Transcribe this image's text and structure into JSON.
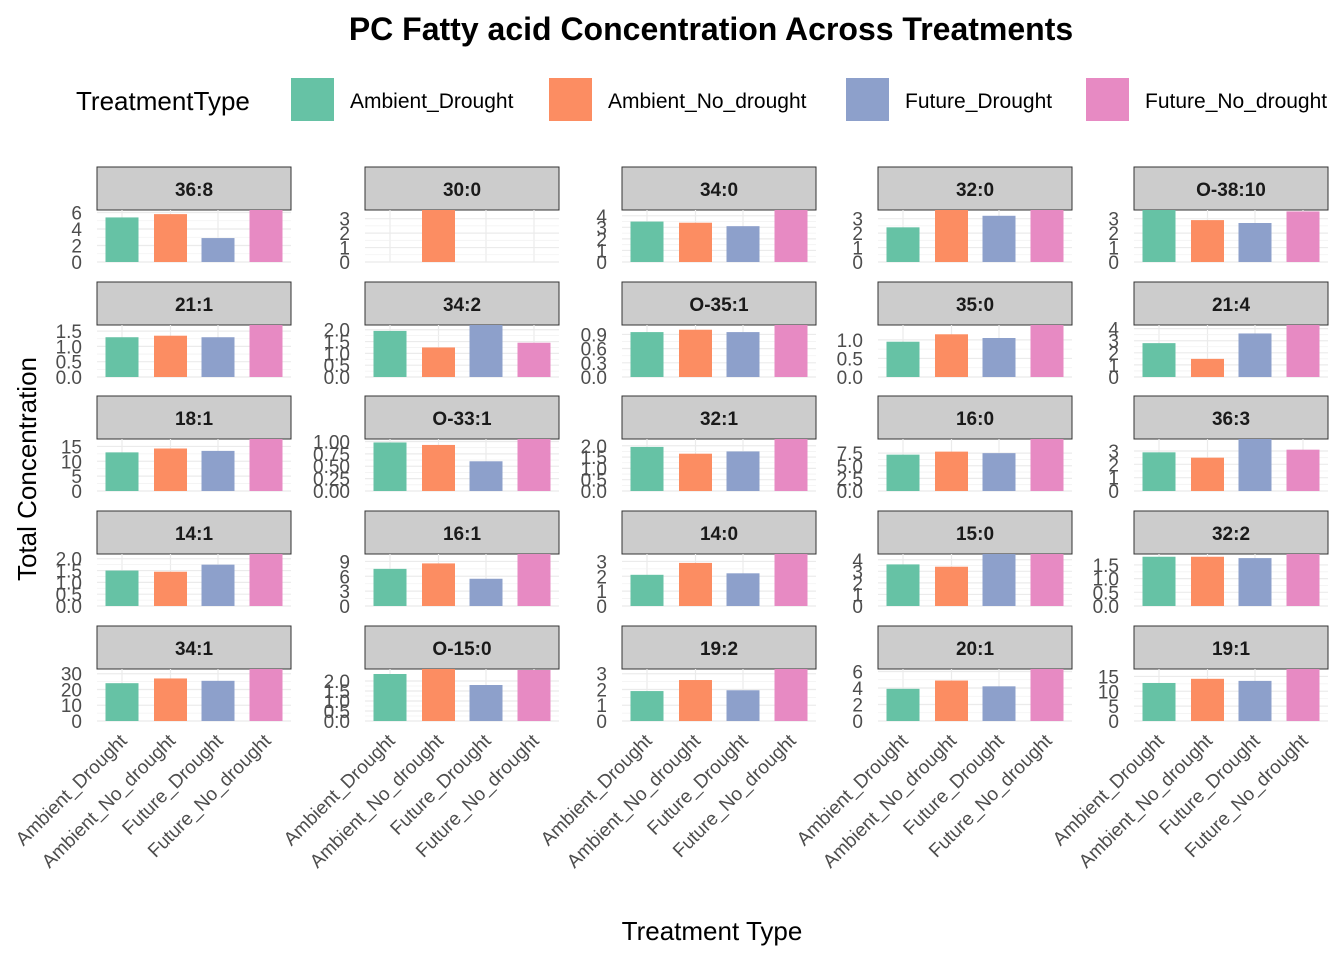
{
  "chart_data": {
    "type": "bar",
    "title": "PC  Fatty acid Concentration Across Treatments",
    "xlabel": "Treatment Type",
    "ylabel": "Total Concentration",
    "legend": {
      "title": "TreatmentType",
      "placement": "top",
      "entries": [
        "Ambient_Drought",
        "Ambient_No_drought",
        "Future_Drought",
        "Future_No_drought"
      ]
    },
    "categories": [
      "Ambient_Drought",
      "Ambient_No_drought",
      "Future_Drought",
      "Future_No_drought"
    ],
    "colors": [
      "#66C2A5",
      "#FC8D62",
      "#8DA0CB",
      "#E78AC3"
    ],
    "grid": true,
    "facet_ncol": 5,
    "panels": [
      {
        "label": "36:8",
        "ylim": [
          0,
          6.3
        ],
        "ticks": [
          0,
          2,
          4,
          6
        ],
        "tick_labels": [
          "0",
          "2",
          "4",
          "6"
        ],
        "values": [
          5.4,
          5.8,
          2.9,
          6.3
        ]
      },
      {
        "label": "30:0",
        "ylim": [
          0,
          3.6
        ],
        "ticks": [
          0,
          1,
          2,
          3
        ],
        "tick_labels": [
          "0",
          "1",
          "2",
          "3"
        ],
        "values": [
          0,
          3.6,
          0,
          0
        ]
      },
      {
        "label": "34:0",
        "ylim": [
          0,
          4.5
        ],
        "ticks": [
          0,
          1,
          2,
          3,
          4
        ],
        "tick_labels": [
          "0",
          "1",
          "2",
          "3",
          "4"
        ],
        "values": [
          3.5,
          3.4,
          3.1,
          4.5
        ]
      },
      {
        "label": "32:0",
        "ylim": [
          0,
          3.6
        ],
        "ticks": [
          0,
          1,
          2,
          3
        ],
        "tick_labels": [
          "0",
          "1",
          "2",
          "3"
        ],
        "values": [
          2.4,
          3.6,
          3.2,
          3.6
        ]
      },
      {
        "label": "O-38:10",
        "ylim": [
          0,
          3.6
        ],
        "ticks": [
          0,
          1,
          2,
          3
        ],
        "tick_labels": [
          "0",
          "1",
          "2",
          "3"
        ],
        "values": [
          3.6,
          2.9,
          2.7,
          3.5
        ]
      },
      {
        "label": "21:1",
        "ylim": [
          0,
          1.7
        ],
        "ticks": [
          0,
          0.5,
          1.0,
          1.5
        ],
        "tick_labels": [
          "0.0",
          "0.5",
          "1.0",
          "1.5"
        ],
        "values": [
          1.3,
          1.35,
          1.3,
          1.7
        ]
      },
      {
        "label": "34:2",
        "ylim": [
          0,
          2.2
        ],
        "ticks": [
          0,
          0.5,
          1.0,
          1.5,
          2.0
        ],
        "tick_labels": [
          "0.0",
          "0.5",
          "1.0",
          "1.5",
          "2.0"
        ],
        "values": [
          1.95,
          1.25,
          2.2,
          1.45
        ]
      },
      {
        "label": "O-35:1",
        "ylim": [
          0,
          1.1
        ],
        "ticks": [
          0,
          0.3,
          0.6,
          0.9
        ],
        "tick_labels": [
          "0.0",
          "0.3",
          "0.6",
          "0.9"
        ],
        "values": [
          0.95,
          1.0,
          0.95,
          1.1
        ]
      },
      {
        "label": "35:0",
        "ylim": [
          0,
          1.4
        ],
        "ticks": [
          0,
          0.5,
          1.0
        ],
        "tick_labels": [
          "0.0",
          "0.5",
          "1.0"
        ],
        "values": [
          0.95,
          1.15,
          1.05,
          1.4
        ]
      },
      {
        "label": "21:4",
        "ylim": [
          0,
          4.3
        ],
        "ticks": [
          0,
          1,
          2,
          3,
          4
        ],
        "tick_labels": [
          "0",
          "1",
          "2",
          "3",
          "4"
        ],
        "values": [
          2.8,
          1.5,
          3.6,
          4.3
        ]
      },
      {
        "label": "18:1",
        "ylim": [
          0,
          17.5
        ],
        "ticks": [
          0,
          5,
          10,
          15
        ],
        "tick_labels": [
          "0",
          "5",
          "10",
          "15"
        ],
        "values": [
          13.0,
          14.3,
          13.5,
          17.5
        ]
      },
      {
        "label": "O-33:1",
        "ylim": [
          0,
          1.05
        ],
        "ticks": [
          0,
          0.25,
          0.5,
          0.75,
          1.0
        ],
        "tick_labels": [
          "0.00",
          "0.25",
          "0.50",
          "0.75",
          "1.00"
        ],
        "values": [
          0.98,
          0.93,
          0.6,
          1.05
        ]
      },
      {
        "label": "32:1",
        "ylim": [
          0,
          2.3
        ],
        "ticks": [
          0,
          0.5,
          1.0,
          1.5,
          2.0
        ],
        "tick_labels": [
          "0.0",
          "0.5",
          "1.0",
          "1.5",
          "2.0"
        ],
        "values": [
          1.95,
          1.65,
          1.75,
          2.3
        ]
      },
      {
        "label": "16:0",
        "ylim": [
          0,
          10.3
        ],
        "ticks": [
          0,
          2.5,
          5.0,
          7.5
        ],
        "tick_labels": [
          "0.0",
          "2.5",
          "5.0",
          "7.5"
        ],
        "values": [
          7.2,
          7.8,
          7.5,
          10.3
        ]
      },
      {
        "label": "36:3",
        "ylim": [
          0,
          3.9
        ],
        "ticks": [
          0,
          1,
          2,
          3
        ],
        "tick_labels": [
          "0",
          "1",
          "2",
          "3"
        ],
        "values": [
          2.9,
          2.5,
          3.9,
          3.1
        ]
      },
      {
        "label": "14:1",
        "ylim": [
          0,
          2.2
        ],
        "ticks": [
          0,
          0.5,
          1.0,
          1.5,
          2.0
        ],
        "tick_labels": [
          "0.0",
          "0.5",
          "1.0",
          "1.5",
          "2.0"
        ],
        "values": [
          1.5,
          1.45,
          1.75,
          2.2
        ]
      },
      {
        "label": "16:1",
        "ylim": [
          0,
          10.5
        ],
        "ticks": [
          0,
          3,
          6,
          9
        ],
        "tick_labels": [
          "0",
          "3",
          "6",
          "9"
        ],
        "values": [
          7.5,
          8.6,
          5.5,
          10.5
        ]
      },
      {
        "label": "14:0",
        "ylim": [
          0,
          3.5
        ],
        "ticks": [
          0,
          1,
          2,
          3
        ],
        "tick_labels": [
          "0",
          "1",
          "2",
          "3"
        ],
        "values": [
          2.1,
          2.9,
          2.2,
          3.5
        ]
      },
      {
        "label": "15:0",
        "ylim": [
          0,
          4.5
        ],
        "ticks": [
          0,
          1,
          2,
          3,
          4
        ],
        "tick_labels": [
          "0",
          "1",
          "2",
          "3",
          "4"
        ],
        "values": [
          3.6,
          3.4,
          4.5,
          4.5
        ]
      },
      {
        "label": "32:2",
        "ylim": [
          0,
          1.9
        ],
        "ticks": [
          0,
          0.5,
          1.0,
          1.5
        ],
        "tick_labels": [
          "0.0",
          "0.5",
          "1.0",
          "1.5"
        ],
        "values": [
          1.8,
          1.8,
          1.75,
          1.9
        ]
      },
      {
        "label": "34:1",
        "ylim": [
          0,
          33
        ],
        "ticks": [
          0,
          10,
          20,
          30
        ],
        "tick_labels": [
          "0",
          "10",
          "20",
          "30"
        ],
        "values": [
          24,
          27,
          25.5,
          33
        ]
      },
      {
        "label": "O-15:0",
        "ylim": [
          0,
          2.6
        ],
        "ticks": [
          0,
          0.5,
          1.0,
          1.5,
          2.0
        ],
        "tick_labels": [
          "0.0",
          "0.5",
          "1.0",
          "1.5",
          "2.0"
        ],
        "values": [
          2.35,
          2.6,
          1.8,
          2.55
        ]
      },
      {
        "label": "19:2",
        "ylim": [
          0,
          3.3
        ],
        "ticks": [
          0,
          1,
          2,
          3
        ],
        "tick_labels": [
          "0",
          "1",
          "2",
          "3"
        ],
        "values": [
          1.9,
          2.6,
          1.95,
          3.3
        ]
      },
      {
        "label": "20:1",
        "ylim": [
          0,
          6.3
        ],
        "ticks": [
          0,
          2,
          4,
          6
        ],
        "tick_labels": [
          "0",
          "2",
          "4",
          "6"
        ],
        "values": [
          3.9,
          4.9,
          4.2,
          6.3
        ]
      },
      {
        "label": "19:1",
        "ylim": [
          0,
          17.5
        ],
        "ticks": [
          0,
          5,
          10,
          15
        ],
        "tick_labels": [
          "0",
          "5",
          "10",
          "15"
        ],
        "values": [
          12.8,
          14.2,
          13.5,
          17.5
        ]
      }
    ]
  }
}
